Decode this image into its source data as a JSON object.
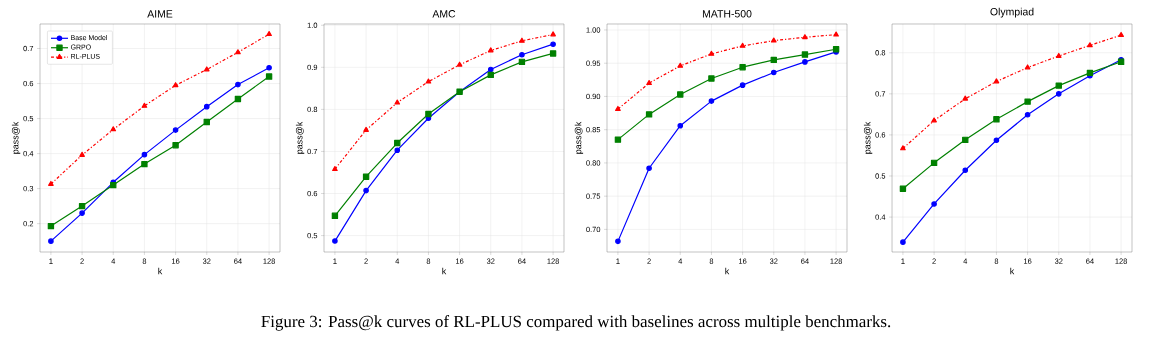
{
  "chart_data": [
    {
      "type": "line",
      "title": "AIME",
      "xlabel": "k",
      "ylabel": "pass@k",
      "categories": [
        "1",
        "2",
        "4",
        "8",
        "16",
        "32",
        "64",
        "128"
      ],
      "ylim": [
        0.119,
        0.77
      ],
      "yticks": [
        0.2,
        0.3,
        0.4,
        0.5,
        0.6,
        0.7
      ],
      "grid": true,
      "legend": "top left",
      "annotations": [
        "Figure 3: Pass@k curves of RL-PLUS compared with baselines across multiple benchmarks."
      ],
      "series": [
        {
          "name": "Base Model",
          "color": "#0000ff",
          "marker": "circle",
          "line_style": "solid",
          "values": [
            0.15,
            0.23,
            0.318,
            0.397,
            0.467,
            0.534,
            0.597,
            0.645
          ]
        },
        {
          "name": "GRPO",
          "color": "#008000",
          "marker": "square",
          "line_style": "solid",
          "values": [
            0.193,
            0.25,
            0.31,
            0.37,
            0.424,
            0.49,
            0.556,
            0.62
          ]
        },
        {
          "name": "RL-PLUS",
          "color": "#ff0000",
          "marker": "triangle",
          "line_style": "dashdot",
          "values": [
            0.313,
            0.396,
            0.469,
            0.536,
            0.595,
            0.64,
            0.689,
            0.741
          ]
        }
      ]
    },
    {
      "type": "line",
      "title": "AMC",
      "xlabel": "k",
      "ylabel": "pass@k",
      "categories": [
        "1",
        "2",
        "4",
        "8",
        "16",
        "32",
        "64",
        "128"
      ],
      "ylim": [
        0.461,
        1.003
      ],
      "yticks": [
        0.5,
        0.6,
        0.7,
        0.8,
        0.9,
        {
          "value": 1.0,
          "label": "1.0"
        }
      ],
      "grid": true,
      "series": [
        {
          "color": "#0000ff",
          "marker": "circle",
          "line_style": "solid",
          "values": [
            0.487,
            0.607,
            0.703,
            0.779,
            0.842,
            0.895,
            0.93,
            0.955
          ]
        },
        {
          "color": "#008000",
          "marker": "square",
          "line_style": "solid",
          "values": [
            0.547,
            0.64,
            0.72,
            0.789,
            0.842,
            0.882,
            0.913,
            0.933
          ]
        },
        {
          "color": "#ff0000",
          "marker": "triangle",
          "line_style": "dashdot",
          "values": [
            0.658,
            0.751,
            0.816,
            0.866,
            0.906,
            0.94,
            0.963,
            0.978
          ]
        }
      ]
    },
    {
      "type": "line",
      "title": "MATH-500",
      "xlabel": "k",
      "ylabel": "pass@k",
      "categories": [
        "1",
        "2",
        "4",
        "8",
        "16",
        "32",
        "64",
        "128"
      ],
      "ylim": [
        0.666,
        1.009
      ],
      "yticks": [
        {
          "value": 0.7,
          "label": "0.70"
        },
        0.75,
        {
          "value": 0.8,
          "label": "0.80"
        },
        0.85,
        {
          "value": 0.9,
          "label": "0.90"
        },
        0.95,
        {
          "value": 1.0,
          "label": "1.00"
        }
      ],
      "grid": true,
      "series": [
        {
          "color": "#0000ff",
          "marker": "circle",
          "line_style": "solid",
          "values": [
            0.682,
            0.792,
            0.856,
            0.893,
            0.917,
            0.936,
            0.952,
            0.967
          ]
        },
        {
          "color": "#008000",
          "marker": "square",
          "line_style": "solid",
          "values": [
            0.835,
            0.873,
            0.903,
            0.927,
            0.944,
            0.955,
            0.963,
            0.971
          ]
        },
        {
          "color": "#ff0000",
          "marker": "triangle",
          "line_style": "dashdot",
          "values": [
            0.881,
            0.92,
            0.946,
            0.964,
            0.976,
            0.984,
            0.989,
            0.993
          ]
        }
      ]
    },
    {
      "type": "line",
      "title": "Olympiad",
      "xlabel": "k",
      "ylabel": "pass@k",
      "categories": [
        "1",
        "2",
        "4",
        "8",
        "16",
        "32",
        "64",
        "128"
      ],
      "ylim": [
        0.315,
        0.87
      ],
      "yticks": [
        0.4,
        0.5,
        0.6,
        0.7,
        0.8
      ],
      "grid": true,
      "series": [
        {
          "color": "#0000ff",
          "marker": "circle",
          "line_style": "solid",
          "values": [
            0.339,
            0.432,
            0.514,
            0.587,
            0.649,
            0.7,
            0.744,
            0.783
          ]
        },
        {
          "color": "#008000",
          "marker": "square",
          "line_style": "solid",
          "values": [
            0.469,
            0.532,
            0.588,
            0.638,
            0.681,
            0.72,
            0.751,
            0.778
          ]
        },
        {
          "color": "#ff0000",
          "marker": "triangle",
          "line_style": "dashdot",
          "values": [
            0.567,
            0.635,
            0.688,
            0.73,
            0.764,
            0.792,
            0.818,
            0.843
          ]
        }
      ]
    }
  ]
}
